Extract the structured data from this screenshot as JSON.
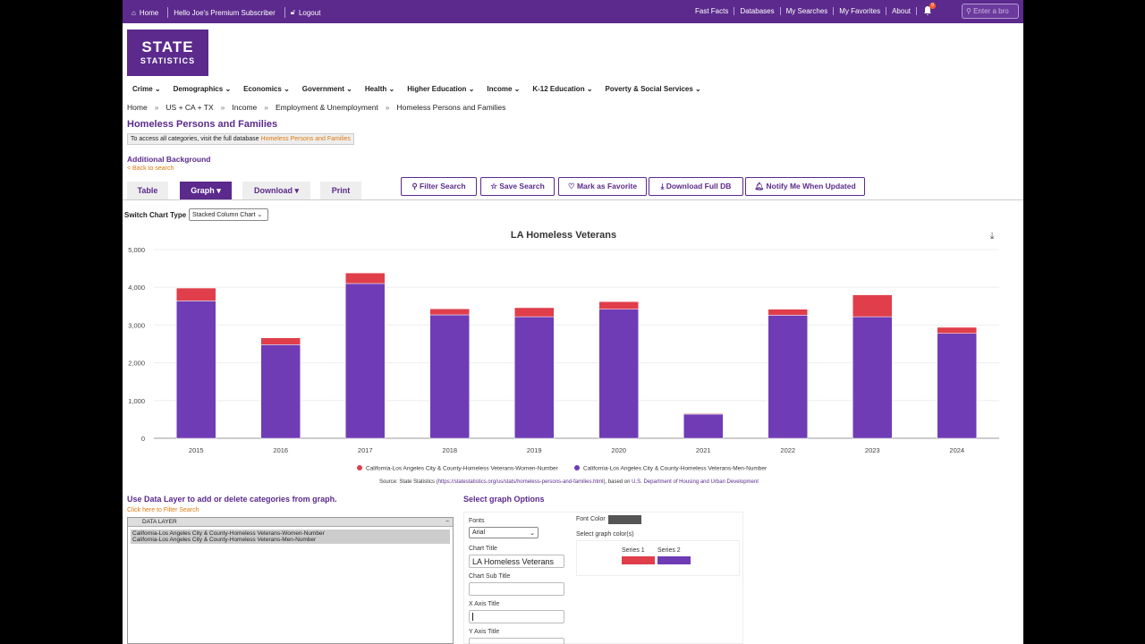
{
  "topbar": {
    "home": "Home",
    "greeting": "Hello Joe's Premium Subscriber",
    "logout": "Logout",
    "links": [
      "Fast Facts",
      "Databases",
      "My Searches",
      "My Favorites",
      "About"
    ],
    "bell_count": "9",
    "search_placeholder": "Enter a bro"
  },
  "logo": {
    "line1": "STATE",
    "line2": "STATISTICS"
  },
  "categories": [
    "Crime",
    "Demographics",
    "Economics",
    "Government",
    "Health",
    "Higher Education",
    "Income",
    "K-12 Education",
    "Poverty & Social Services"
  ],
  "breadcrumb": [
    "Home",
    "US + CA + TX",
    "Income",
    "Employment & Unemployment",
    "Homeless Persons and Families"
  ],
  "page_title": "Homeless Persons and Families",
  "info": {
    "text": "To access all categories, visit the full database ",
    "link": "Homeless Persons and Families"
  },
  "additional_background": "Additional Background",
  "back_to_search": "< Back to search",
  "tabs": {
    "table": "Table",
    "graph": "Graph",
    "download": "Download",
    "print": "Print"
  },
  "actions": {
    "filter": "Filter Search",
    "save": "Save Search",
    "favorite": "Mark as Favorite",
    "download_db": "Download Full DB",
    "notify": "Notify Me When Updated"
  },
  "chart_type_label": "Switch Chart Type",
  "chart_type_value": "Stacked Column Chart",
  "colors": {
    "purple": "#5b2a8c",
    "series1": "#e03e4b",
    "series2": "#6f3cb6",
    "orange": "#e07a10"
  },
  "chart_data": {
    "type": "bar",
    "stacked": true,
    "title": "LA Homeless Veterans",
    "categories": [
      "2015",
      "2016",
      "2017",
      "2018",
      "2019",
      "2020",
      "2021",
      "2022",
      "2023",
      "2024"
    ],
    "series": [
      {
        "name": "California-Los Angeles City & County-Homeless Veterans-Men-Number",
        "values": [
          3640,
          2480,
          4100,
          3270,
          3220,
          3420,
          640,
          3260,
          3220,
          2780
        ]
      },
      {
        "name": "California-Los Angeles City & County-Homeless Veterans-Women-Number",
        "values": [
          340,
          180,
          280,
          160,
          240,
          200,
          20,
          160,
          580,
          160
        ]
      }
    ],
    "yticks": [
      "0",
      "1,000",
      "2,000",
      "3,000",
      "4,000",
      "5,000"
    ],
    "ylim": [
      0,
      5000
    ],
    "legend": [
      "California-Los Angeles City & County-Homeless Veterans-Women-Number",
      "California-Los Angeles City & County-Homeless Veterans-Men-Number"
    ],
    "source_prefix": "Source: State Statistics (",
    "source_link": "https://statestatistics.org/us/stats/homeless-persons-and-families.html",
    "source_mid": "), based on ",
    "source_org": "U.S. Department of Housing and Urban Development"
  },
  "data_layer": {
    "heading": "Use Data Layer to add or delete categories from graph.",
    "click_here": "Click here to Filter Search",
    "title": "DATA LAYER",
    "items": [
      "California-Los Angeles City & County-Homeless Veterans-Women-Number",
      "California-Los Angeles City & County-Homeless Veterans-Men-Number"
    ]
  },
  "options": {
    "heading": "Select graph Options",
    "fonts_label": "Fonts",
    "font_value": "Arial",
    "chart_title_label": "Chart Title",
    "chart_title_value": "LA Homeless Veterans",
    "sub_title_label": "Chart Sub Title",
    "x_axis_label": "X Axis Title",
    "y_axis_label": "Y Axis Title",
    "font_color_label": "Font Color",
    "graph_colors_label": "Select graph color(s)",
    "series1_label": "Series 1",
    "series2_label": "Series 2"
  }
}
